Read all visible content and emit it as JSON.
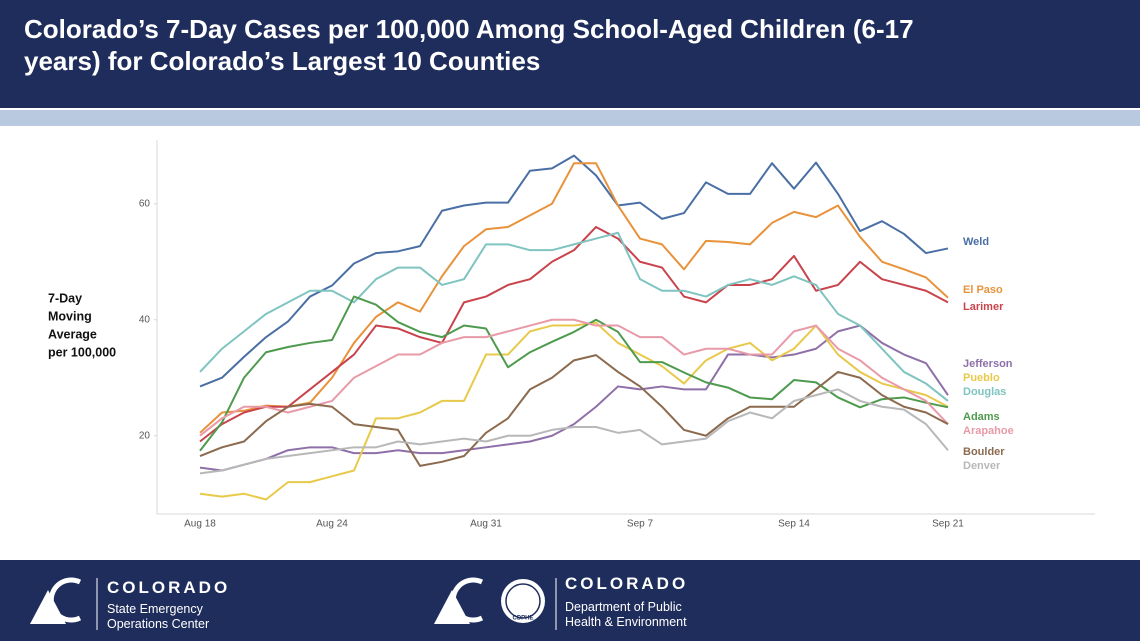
{
  "header": {
    "title_lines": [
      "Colorado’s 7-Day Cases per 100,000 Among School-Aged Children (6-17",
      "years) for Colorado’s Largest 10 Counties"
    ]
  },
  "chart_data": {
    "type": "line",
    "y_label_lines": [
      "7-Day",
      "Moving",
      "Average",
      "per 100,000"
    ],
    "categories": [
      "Aug 18",
      null,
      null,
      null,
      null,
      null,
      "Aug 24",
      null,
      null,
      null,
      null,
      null,
      null,
      "Aug 31",
      null,
      null,
      null,
      null,
      null,
      null,
      "Sep 7",
      null,
      null,
      null,
      null,
      null,
      null,
      "Sep 14",
      null,
      null,
      null,
      null,
      null,
      null,
      "Sep 21"
    ],
    "ylim": [
      6.5,
      71
    ],
    "yticks": [
      20,
      40,
      60
    ],
    "grid": false,
    "series": [
      {
        "name": "Weld",
        "color": "#4a6fa5",
        "values": [
          28.5,
          30,
          33.6,
          37,
          39.7,
          44,
          45.9,
          49.7,
          51.5,
          51.8,
          52.7,
          58.8,
          59.7,
          60.2,
          60.2,
          65.7,
          66.1,
          68.3,
          64.9,
          59.7,
          60.2,
          57.4,
          58.4,
          63.7,
          61.7,
          61.7,
          67,
          62.6,
          67.1,
          61.7,
          55.3,
          57,
          54.8,
          51.5,
          52.3
        ]
      },
      {
        "name": "El Paso",
        "color": "#e8923a",
        "values": [
          20.5,
          24,
          24.3,
          25.2,
          25,
          25.7,
          30,
          36,
          40.5,
          43,
          41.4,
          47.5,
          52.7,
          55.6,
          56,
          58,
          60,
          67,
          67,
          59.7,
          54,
          53,
          48.7,
          53.6,
          53.4,
          53,
          56.7,
          58.6,
          57.7,
          59.7,
          54.3,
          50,
          48.7,
          47.3,
          43.8
        ]
      },
      {
        "name": "Larimer",
        "color": "#c8434b",
        "values": [
          19,
          22,
          24,
          25,
          25,
          28,
          31,
          34,
          39,
          38.5,
          37,
          36,
          43,
          44,
          46,
          47,
          50,
          52,
          56,
          54,
          50,
          49,
          44,
          43,
          46,
          46,
          47,
          51,
          45,
          46,
          50,
          47,
          46,
          45,
          43
        ]
      },
      {
        "name": "Jefferson",
        "color": "#8e6fa8",
        "values": [
          14.5,
          14,
          15,
          16,
          17.5,
          18,
          18,
          17,
          17,
          17.5,
          17,
          17,
          17.5,
          18,
          18.5,
          19,
          20,
          22,
          25,
          28.5,
          28,
          28.5,
          28,
          28,
          34,
          34,
          33.5,
          34,
          35,
          38,
          39,
          36,
          34,
          32.5,
          27
        ]
      },
      {
        "name": "Pueblo",
        "color": "#e8c94a",
        "values": [
          10,
          9.5,
          10,
          9,
          12,
          12,
          13,
          14,
          23,
          23,
          24,
          26,
          26,
          34,
          34,
          38,
          39,
          39,
          39.5,
          36,
          34,
          32,
          29,
          33,
          35,
          36,
          33,
          35,
          39,
          34,
          31,
          29,
          28,
          27,
          25
        ]
      },
      {
        "name": "Douglas",
        "color": "#7fc4c0",
        "values": [
          31,
          35,
          38,
          41,
          43,
          45,
          45,
          43,
          47,
          49,
          49,
          46,
          47,
          53,
          53,
          52,
          52,
          53,
          54,
          55,
          47,
          45,
          45,
          44,
          46,
          47,
          46,
          47.5,
          46,
          41,
          39,
          35,
          31,
          29,
          26
        ]
      },
      {
        "name": "Adams",
        "color": "#4e9a4e",
        "values": [
          17.4,
          22.3,
          30,
          34.4,
          35.3,
          36,
          36.5,
          44,
          42.6,
          39.6,
          37.9,
          37,
          39,
          38.5,
          31.8,
          34.4,
          36.2,
          37.9,
          40,
          37.9,
          32.7,
          32.7,
          30.9,
          29.2,
          28.3,
          26.6,
          26.3,
          29.6,
          29.2,
          26.6,
          24.9,
          26.3,
          26.6,
          25.7,
          24.9
        ]
      },
      {
        "name": "Arapahoe",
        "color": "#e89aa8",
        "values": [
          20,
          23,
          25,
          25,
          24,
          25,
          26,
          30,
          32,
          34,
          34,
          36,
          37,
          37,
          38,
          39,
          40,
          40,
          39,
          39,
          37,
          37,
          34,
          35,
          35,
          34,
          34,
          38,
          39,
          35,
          33,
          30,
          28,
          26,
          22
        ]
      },
      {
        "name": "Boulder",
        "color": "#8b6a4e",
        "values": [
          16.5,
          18,
          19,
          22.5,
          25,
          25.5,
          25,
          22,
          21.5,
          21,
          14.8,
          15.5,
          16.5,
          20.5,
          23,
          28,
          30,
          33,
          33.9,
          31,
          28.5,
          25,
          21,
          20,
          23,
          25,
          25,
          25,
          28,
          31,
          30,
          27,
          25,
          24,
          22
        ]
      },
      {
        "name": "Denver",
        "color": "#b8b8b8",
        "values": [
          13.5,
          14,
          15,
          16,
          16.5,
          17,
          17.5,
          18,
          18,
          19,
          18.5,
          19,
          19.5,
          19,
          20,
          20,
          21,
          21.5,
          21.5,
          20.5,
          21,
          18.5,
          19,
          19.5,
          22.5,
          24,
          23,
          26,
          27,
          28,
          26,
          25,
          24.5,
          22,
          17.5
        ]
      }
    ]
  },
  "footer": {
    "left": {
      "name": "COLORADO",
      "lines": [
        "State Emergency",
        "Operations Center"
      ]
    },
    "right": {
      "name": "COLORADO",
      "badge": "CDPHE",
      "lines": [
        "Department of Public",
        "Health & Environment"
      ]
    }
  }
}
